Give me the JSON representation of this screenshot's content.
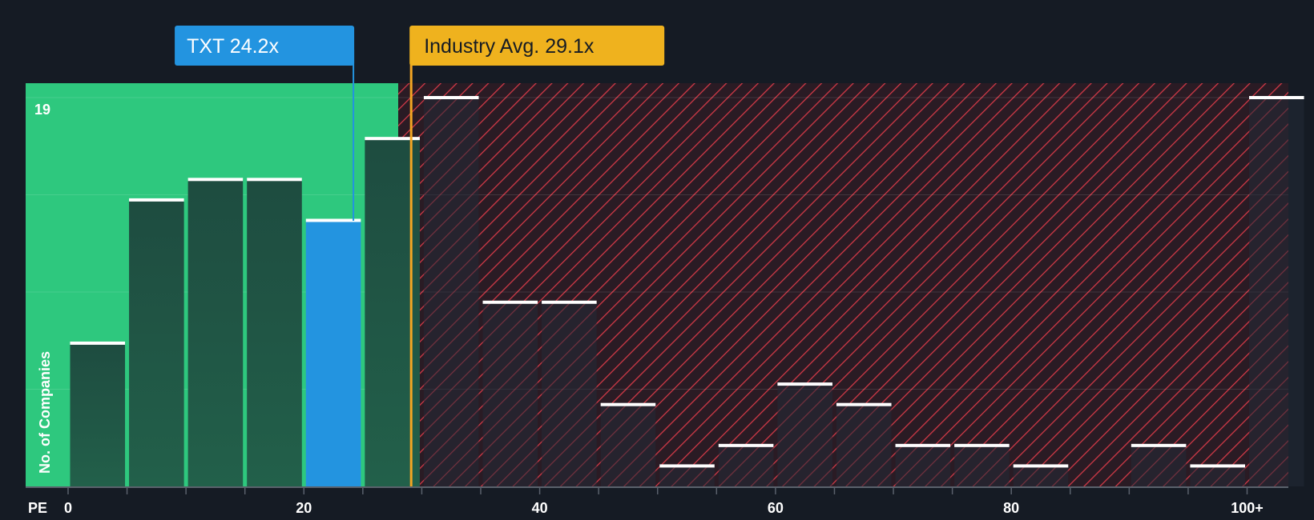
{
  "chart_data": {
    "type": "bar",
    "title": "",
    "xlabel": "PE",
    "ylabel": "No. of Companies",
    "y_max_label": "19",
    "ylim": [
      0,
      19
    ],
    "xlim": [
      -3.6,
      103.5
    ],
    "x_ticks": [
      {
        "value": 0,
        "label": "0"
      },
      {
        "value": 20,
        "label": "20"
      },
      {
        "value": 40,
        "label": "40"
      },
      {
        "value": 60,
        "label": "60"
      },
      {
        "value": 80,
        "label": "80"
      },
      {
        "value": 100,
        "label": "100+"
      }
    ],
    "bin_width": 5,
    "bins": [
      {
        "start": 0,
        "count": 7
      },
      {
        "start": 5,
        "count": 14
      },
      {
        "start": 10,
        "count": 15
      },
      {
        "start": 15,
        "count": 15
      },
      {
        "start": 20,
        "count": 13
      },
      {
        "start": 25,
        "count": 17
      },
      {
        "start": 30,
        "count": 19
      },
      {
        "start": 35,
        "count": 9
      },
      {
        "start": 40,
        "count": 9
      },
      {
        "start": 45,
        "count": 4
      },
      {
        "start": 50,
        "count": 1
      },
      {
        "start": 55,
        "count": 2
      },
      {
        "start": 60,
        "count": 5
      },
      {
        "start": 65,
        "count": 4
      },
      {
        "start": 70,
        "count": 2
      },
      {
        "start": 75,
        "count": 2
      },
      {
        "start": 80,
        "count": 1
      },
      {
        "start": 85,
        "count": 0
      },
      {
        "start": 90,
        "count": 2
      },
      {
        "start": 95,
        "count": 1
      },
      {
        "start": 100,
        "count": 19
      }
    ],
    "company": {
      "label": "TXT 24.2x",
      "value": 24.2,
      "bin_index": 4
    },
    "industry": {
      "label": "Industry Avg. 29.1x",
      "value": 29.1
    },
    "fair_zone_end": 28,
    "colors": {
      "background": "#151b24",
      "fair_zone": "#2ec87e",
      "fair_bar": "#1e4c40",
      "company_bar": "#2394e0",
      "company_label_bg": "#2394e0",
      "industry_label_bg": "#efb21e",
      "industry_line": "#f5a623",
      "overvalued_bg": "#2a1b24",
      "overvalued_stripe": "#d63a48",
      "over_bar": "#232a36",
      "bar_cap": "#ffffff",
      "axis": "#5a616c",
      "text": "#ffffff",
      "industry_label_text": "#151b24"
    }
  }
}
